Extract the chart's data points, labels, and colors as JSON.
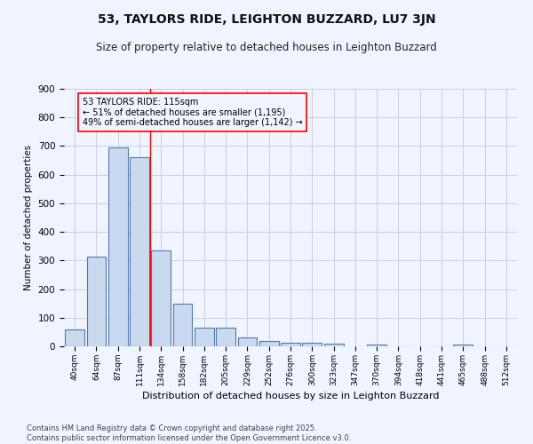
{
  "title": "53, TAYLORS RIDE, LEIGHTON BUZZARD, LU7 3JN",
  "subtitle": "Size of property relative to detached houses in Leighton Buzzard",
  "xlabel": "Distribution of detached houses by size in Leighton Buzzard",
  "ylabel": "Number of detached properties",
  "bar_labels": [
    "40sqm",
    "64sqm",
    "87sqm",
    "111sqm",
    "134sqm",
    "158sqm",
    "182sqm",
    "205sqm",
    "229sqm",
    "252sqm",
    "276sqm",
    "300sqm",
    "323sqm",
    "347sqm",
    "370sqm",
    "394sqm",
    "418sqm",
    "441sqm",
    "465sqm",
    "488sqm",
    "512sqm"
  ],
  "bar_values": [
    60,
    312,
    695,
    660,
    335,
    150,
    65,
    65,
    30,
    20,
    11,
    11,
    10,
    0,
    6,
    0,
    0,
    0,
    6,
    0,
    0
  ],
  "bar_color": "#c9d9ee",
  "bar_edge_color": "#4f7bb5",
  "grid_color": "#ccccdd",
  "background_color": "#f0f4ff",
  "red_line_index": 3.5,
  "annotation_text": "53 TAYLORS RIDE: 115sqm\n← 51% of detached houses are smaller (1,195)\n49% of semi-detached houses are larger (1,142) →",
  "footer_text": "Contains HM Land Registry data © Crown copyright and database right 2025.\nContains public sector information licensed under the Open Government Licence v3.0.",
  "ylim": [
    0,
    900
  ],
  "yticks": [
    0,
    100,
    200,
    300,
    400,
    500,
    600,
    700,
    800,
    900
  ]
}
